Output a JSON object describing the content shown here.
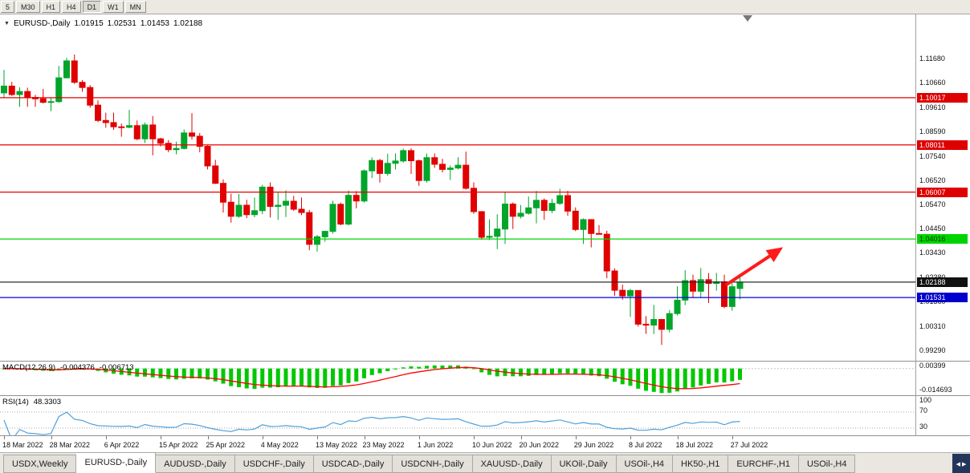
{
  "toolbar": {
    "timeframes": [
      "5",
      "M30",
      "H1",
      "H4",
      "D1",
      "W1",
      "MN"
    ],
    "active_timeframe": "D1"
  },
  "chart": {
    "collapse_icon": "▼",
    "symbol_title": "EURUSD-,Daily",
    "ohlc": {
      "open": "1.01915",
      "high": "1.02531",
      "low": "1.01453",
      "close": "1.02188"
    }
  },
  "chart_data": {
    "type": "candlestick",
    "symbol": "EURUSD-",
    "timeframe": "Daily",
    "title": "EURUSD-,Daily 1.01915 1.02531 1.01453 1.02188",
    "candle_up_color": "#00A52A",
    "candle_down_color": "#E00000",
    "price_axis_labels": [
      "1.11680",
      "1.10660",
      "1.09610",
      "1.08590",
      "1.07540",
      "1.06520",
      "1.05470",
      "1.04450",
      "1.03430",
      "1.02380",
      "1.01360",
      "1.00310",
      "0.99290"
    ],
    "x_ticks": [
      {
        "i": 0,
        "label": "18 Mar 2022"
      },
      {
        "i": 6,
        "label": "28 Mar 2022"
      },
      {
        "i": 13,
        "label": "6 Apr 2022"
      },
      {
        "i": 20,
        "label": "15 Apr 2022"
      },
      {
        "i": 26,
        "label": "25 Apr 2022"
      },
      {
        "i": 33,
        "label": "4 May 2022"
      },
      {
        "i": 40,
        "label": "13 May 2022"
      },
      {
        "i": 46,
        "label": "23 May 2022"
      },
      {
        "i": 53,
        "label": "1 Jun 2022"
      },
      {
        "i": 60,
        "label": "10 Jun 2022"
      },
      {
        "i": 66,
        "label": "20 Jun 2022"
      },
      {
        "i": 73,
        "label": "29 Jun 2022"
      },
      {
        "i": 80,
        "label": "8 Jul 2022"
      },
      {
        "i": 86,
        "label": "18 Jul 2022"
      },
      {
        "i": 93,
        "label": "27 Jul 2022"
      }
    ],
    "candles": [
      [
        1.1022,
        1.112,
        1.1003,
        1.1051
      ],
      [
        1.1051,
        1.1069,
        1.1009,
        1.1015
      ],
      [
        1.1015,
        1.1046,
        1.0963,
        1.1028
      ],
      [
        1.1028,
        1.1044,
        1.0963,
        1.1003
      ],
      [
        1.1003,
        1.1014,
        1.0963,
        1.0997
      ],
      [
        1.0997,
        1.1039,
        1.0977,
        1.0982
      ],
      [
        1.0982,
        1.1,
        1.0944,
        1.0985
      ],
      [
        1.0985,
        1.1137,
        1.098,
        1.1086
      ],
      [
        1.1086,
        1.1171,
        1.1084,
        1.1158
      ],
      [
        1.1158,
        1.1185,
        1.106,
        1.1067
      ],
      [
        1.1067,
        1.1076,
        1.1027,
        1.1045
      ],
      [
        1.1045,
        1.1055,
        1.096,
        1.097
      ],
      [
        1.097,
        1.099,
        1.0898,
        1.0905
      ],
      [
        1.0905,
        1.0938,
        1.0874,
        1.0896
      ],
      [
        1.0896,
        1.0938,
        1.0865,
        1.0878
      ],
      [
        1.0878,
        1.0892,
        1.0836,
        1.0876
      ],
      [
        1.0876,
        1.095,
        1.0872,
        1.0883
      ],
      [
        1.0883,
        1.0905,
        1.0821,
        1.0827
      ],
      [
        1.0827,
        1.0896,
        1.0809,
        1.0886
      ],
      [
        1.0886,
        1.0924,
        1.0757,
        1.0827
      ],
      [
        1.0827,
        1.0832,
        1.0795,
        1.0808
      ],
      [
        1.0808,
        1.0822,
        1.077,
        1.0781
      ],
      [
        1.0781,
        1.0815,
        1.0761,
        1.0786
      ],
      [
        1.0786,
        1.0867,
        1.0782,
        1.0852
      ],
      [
        1.0852,
        1.0936,
        1.0824,
        1.0838
      ],
      [
        1.0838,
        1.0852,
        1.077,
        1.0795
      ],
      [
        1.0795,
        1.08,
        1.0697,
        1.0712
      ],
      [
        1.0712,
        1.0738,
        1.0635,
        1.0638
      ],
      [
        1.0638,
        1.0655,
        1.0514,
        1.0558
      ],
      [
        1.0558,
        1.0594,
        1.0471,
        1.0498
      ],
      [
        1.0498,
        1.0593,
        1.0492,
        1.0545
      ],
      [
        1.0545,
        1.0568,
        1.049,
        1.0505
      ],
      [
        1.0505,
        1.0578,
        1.0494,
        1.0522
      ],
      [
        1.0522,
        1.0632,
        1.0507,
        1.0622
      ],
      [
        1.0622,
        1.0642,
        1.0493,
        1.054
      ],
      [
        1.054,
        1.0599,
        1.0483,
        1.0545
      ],
      [
        1.0545,
        1.0609,
        1.0495,
        1.0562
      ],
      [
        1.0562,
        1.0585,
        1.0521,
        1.0528
      ],
      [
        1.0528,
        1.0578,
        1.0503,
        1.0514
      ],
      [
        1.0514,
        1.0525,
        1.0354,
        1.0379
      ],
      [
        1.0379,
        1.0419,
        1.0348,
        1.0411
      ],
      [
        1.0411,
        1.0437,
        1.039,
        1.0434
      ],
      [
        1.0434,
        1.0564,
        1.0424,
        1.0549
      ],
      [
        1.0549,
        1.0556,
        1.046,
        1.0465
      ],
      [
        1.0465,
        1.0607,
        1.0459,
        1.0587
      ],
      [
        1.0587,
        1.0605,
        1.0532,
        1.0563
      ],
      [
        1.0563,
        1.0697,
        1.0556,
        1.0691
      ],
      [
        1.0691,
        1.0748,
        1.066,
        1.0735
      ],
      [
        1.0735,
        1.0742,
        1.0641,
        1.068
      ],
      [
        1.068,
        1.0764,
        1.0671,
        1.0723
      ],
      [
        1.0723,
        1.0765,
        1.0697,
        1.0733
      ],
      [
        1.0733,
        1.0786,
        1.0726,
        1.0777
      ],
      [
        1.0777,
        1.0787,
        1.0678,
        1.0734
      ],
      [
        1.0734,
        1.0739,
        1.0627,
        1.065
      ],
      [
        1.065,
        1.0764,
        1.0641,
        1.0747
      ],
      [
        1.0747,
        1.0765,
        1.0704,
        1.0719
      ],
      [
        1.0719,
        1.0742,
        1.0684,
        1.0697
      ],
      [
        1.0697,
        1.0714,
        1.0652,
        1.0703
      ],
      [
        1.0703,
        1.0749,
        1.0697,
        1.0715
      ],
      [
        1.0715,
        1.0773,
        1.0611,
        1.0617
      ],
      [
        1.0617,
        1.0642,
        1.0508,
        1.0518
      ],
      [
        1.0518,
        1.052,
        1.0399,
        1.0409
      ],
      [
        1.0409,
        1.0485,
        1.0397,
        1.0413
      ],
      [
        1.0413,
        1.0507,
        1.0359,
        1.0444
      ],
      [
        1.0444,
        1.0601,
        1.0381,
        1.055
      ],
      [
        1.055,
        1.0557,
        1.0444,
        1.0498
      ],
      [
        1.0498,
        1.0546,
        1.0489,
        1.0511
      ],
      [
        1.0511,
        1.0582,
        1.0505,
        1.0534
      ],
      [
        1.0534,
        1.0606,
        1.0468,
        1.0566
      ],
      [
        1.0566,
        1.0574,
        1.0483,
        1.0523
      ],
      [
        1.0523,
        1.0572,
        1.0512,
        1.0553
      ],
      [
        1.0553,
        1.0615,
        1.0546,
        1.0586
      ],
      [
        1.0586,
        1.0606,
        1.05,
        1.052
      ],
      [
        1.052,
        1.0536,
        1.0435,
        1.0442
      ],
      [
        1.0442,
        1.0489,
        1.0381,
        1.0484
      ],
      [
        1.0484,
        1.0486,
        1.0366,
        1.0425
      ],
      [
        1.0425,
        1.0461,
        1.0421,
        1.0422
      ],
      [
        1.0422,
        1.0437,
        1.0235,
        1.0266
      ],
      [
        1.0266,
        1.0277,
        1.0161,
        1.0184
      ],
      [
        1.0184,
        1.0208,
        1.0144,
        1.016
      ],
      [
        1.016,
        1.019,
        1.0071,
        1.0183
      ],
      [
        1.0183,
        1.0184,
        1.003,
        1.004
      ],
      [
        1.004,
        1.0074,
        0.9999,
        1.0036
      ],
      [
        1.0036,
        1.0122,
        0.9998,
        1.006
      ],
      [
        1.006,
        1.0062,
        0.9952,
        1.0018
      ],
      [
        1.0018,
        1.01,
        1.0005,
        1.0085
      ],
      [
        1.0085,
        1.0201,
        1.0077,
        1.0142
      ],
      [
        1.0142,
        1.0269,
        1.0121,
        1.0225
      ],
      [
        1.0225,
        1.025,
        1.0155,
        1.018
      ],
      [
        1.018,
        1.0278,
        1.0151,
        1.0229
      ],
      [
        1.0229,
        1.0257,
        1.013,
        1.0213
      ],
      [
        1.0213,
        1.0258,
        1.0182,
        1.022
      ],
      [
        1.022,
        1.025,
        1.0108,
        1.0115
      ],
      [
        1.0115,
        1.022,
        1.0097,
        1.0199
      ],
      [
        1.01915,
        1.02531,
        1.01453,
        1.02188
      ]
    ],
    "hlines": [
      {
        "price": 1.10017,
        "label": "1.10017",
        "color": "#E60000",
        "label_bg": "#DE0000",
        "label_fg": "#FFFFFF"
      },
      {
        "price": 1.08011,
        "label": "1.08011",
        "color": "#E60000",
        "label_bg": "#DE0000",
        "label_fg": "#FFFFFF"
      },
      {
        "price": 1.06007,
        "label": "1.06007",
        "color": "#E60000",
        "label_bg": "#DE0000",
        "label_fg": "#FFFFFF"
      },
      {
        "price": 1.04016,
        "label": "1.04016",
        "color": "#00D400",
        "label_bg": "#00D400",
        "label_fg": "#003300"
      },
      {
        "price": 1.02188,
        "label": "1.02188",
        "color": "#2B2B2B",
        "label_bg": "#111111",
        "label_fg": "#FFFFFF"
      },
      {
        "price": 1.01531,
        "label": "1.01531",
        "color": "#0000DD",
        "label_bg": "#0000CC",
        "label_fg": "#FFFFFF"
      }
    ],
    "trend_arrow": {
      "from_index": 92.2,
      "from_price": 1.0206,
      "to_index": 98.2,
      "to_price": 1.0338,
      "color": "#FF1A1A"
    },
    "indicators": {
      "macd": {
        "label": "MACD(12,26,9)",
        "value_main": "-0.004376",
        "value_signal": "-0.006713",
        "fast": 12,
        "slow": 26,
        "signal": 9,
        "axis_top_label": "0.00399",
        "axis_bottom_label": "-0.014693",
        "histogram_color": "#00C800",
        "signal_color": "#FF0000"
      },
      "rsi": {
        "label": "RSI(14)",
        "value": "48.3303",
        "period": 14,
        "axis_labels": [
          "100",
          "70",
          "30"
        ],
        "levels": [
          70,
          30
        ],
        "line_color": "#4FA0DC"
      }
    }
  },
  "tabs": {
    "items": [
      {
        "label": "USDX,Weekly",
        "active": false
      },
      {
        "label": "EURUSD-,Daily",
        "active": true
      },
      {
        "label": "AUDUSD-,Daily",
        "active": false
      },
      {
        "label": "USDCHF-,Daily",
        "active": false
      },
      {
        "label": "USDCAD-,Daily",
        "active": false
      },
      {
        "label": "USDCNH-,Daily",
        "active": false
      },
      {
        "label": "XAUUSD-,Daily",
        "active": false
      },
      {
        "label": "UKOil-,Daily",
        "active": false
      },
      {
        "label": "USOil-,H4",
        "active": false
      },
      {
        "label": "HK50-,H1",
        "active": false
      },
      {
        "label": "EURCHF-,H1",
        "active": false
      },
      {
        "label": "USOil-,H4",
        "active": false
      }
    ],
    "scroll_left_icon": "◀",
    "scroll_right_icon": "▶"
  }
}
